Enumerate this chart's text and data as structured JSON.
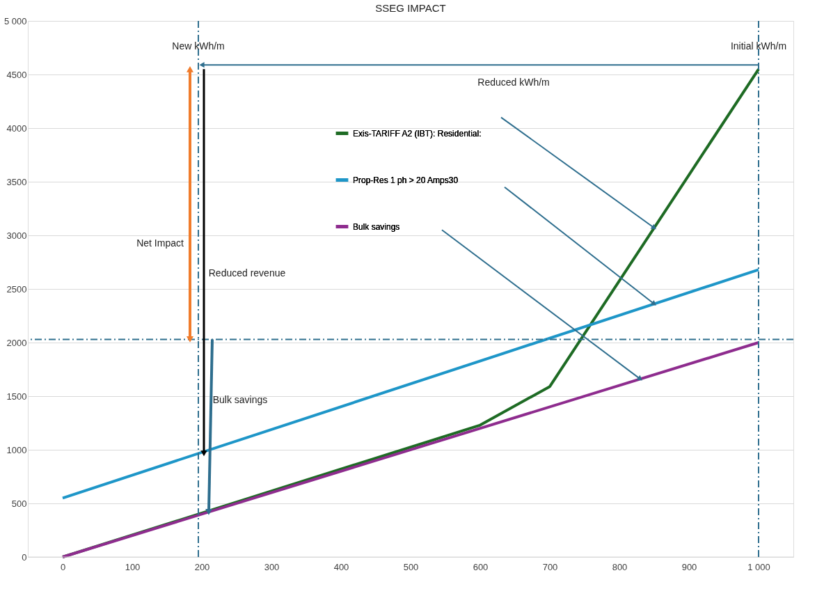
{
  "chart_data": {
    "type": "line",
    "title": "SSEG IMPACT",
    "xlim": [
      -50,
      1050
    ],
    "xticks": [
      0,
      100,
      200,
      300,
      400,
      500,
      600,
      700,
      800,
      900,
      {
        "value": 1000,
        "label": "1 000"
      }
    ],
    "ylim": [
      0,
      5000
    ],
    "yticks": [
      0,
      500,
      1000,
      1500,
      2000,
      2500,
      3000,
      3500,
      4000,
      4500,
      {
        "value": 5000,
        "label": "5 000"
      }
    ],
    "grid": "y",
    "legend": "top",
    "series": [
      {
        "name": "Exis-TARIFF A2 (IBT): Residential:",
        "color": "#1e6b24",
        "x": [
          0,
          600,
          700,
          1000
        ],
        "values": [
          0,
          1230,
          1590,
          4550
        ]
      },
      {
        "name": "Prop-Res 1 ph > 20 Amps30",
        "color": "#1e96c8",
        "x": [
          0,
          1000
        ],
        "values": [
          550,
          2680
        ]
      },
      {
        "name": "Bulk savings",
        "color": "#8e2c8e",
        "x": [
          0,
          1000
        ],
        "values": [
          0,
          2000
        ]
      }
    ],
    "ref_lines": [
      {
        "axis": "x",
        "value": 195,
        "color": "#2e6e8e",
        "line_style": "dashed"
      },
      {
        "axis": "x",
        "value": 1000,
        "color": "#2e6e8e",
        "line_style": "dashed"
      },
      {
        "axis": "y",
        "value": 2030,
        "color": "#2e6e8e",
        "line_style": "dashed"
      }
    ],
    "annotations": [
      "New kWh/m",
      "Initial kWh/m",
      "Reduced kWh/m",
      "Net Impact",
      "Reduced revenue",
      "Bulk savings"
    ]
  }
}
